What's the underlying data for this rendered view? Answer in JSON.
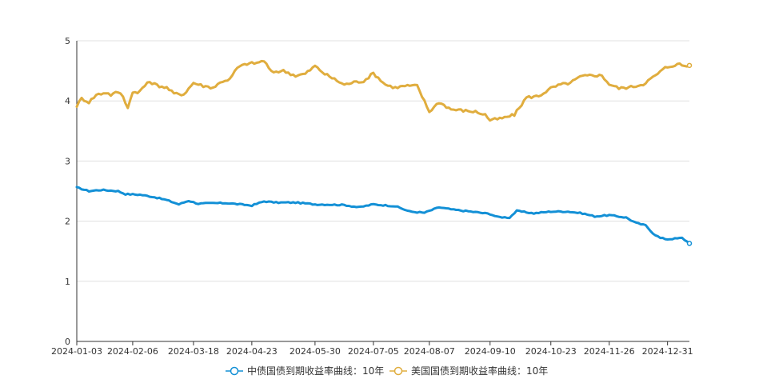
{
  "chart_data": {
    "type": "line",
    "x_ticks": [
      "2024-01-03",
      "2024-02-06",
      "2024-03-18",
      "2024-04-23",
      "2024-05-30",
      "2024-07-05",
      "2024-08-07",
      "2024-09-10",
      "2024-10-23",
      "2024-11-26",
      "2024-12-31"
    ],
    "x_tick_indices": [
      0,
      23,
      48,
      72,
      98,
      122,
      145,
      170,
      195,
      219,
      243
    ],
    "ylim": [
      0,
      5
    ],
    "y_ticks": [
      0,
      1,
      2,
      3,
      4,
      5
    ],
    "grid": true,
    "legend_position": "bottom-center",
    "series": [
      {
        "name": "中债国债到期收益率曲线：10年",
        "color": "#1390d6",
        "keypoints": [
          [
            0,
            2.56
          ],
          [
            5,
            2.5
          ],
          [
            10,
            2.52
          ],
          [
            17,
            2.5
          ],
          [
            20,
            2.45
          ],
          [
            26,
            2.44
          ],
          [
            32,
            2.4
          ],
          [
            37,
            2.35
          ],
          [
            42,
            2.28
          ],
          [
            46,
            2.34
          ],
          [
            50,
            2.29
          ],
          [
            56,
            2.3
          ],
          [
            62,
            2.3
          ],
          [
            72,
            2.26
          ],
          [
            77,
            2.33
          ],
          [
            82,
            2.31
          ],
          [
            90,
            2.31
          ],
          [
            98,
            2.28
          ],
          [
            110,
            2.27
          ],
          [
            116,
            2.23
          ],
          [
            122,
            2.28
          ],
          [
            131,
            2.25
          ],
          [
            137,
            2.16
          ],
          [
            143,
            2.14
          ],
          [
            149,
            2.23
          ],
          [
            155,
            2.19
          ],
          [
            162,
            2.16
          ],
          [
            170,
            2.12
          ],
          [
            173,
            2.07
          ],
          [
            178,
            2.06
          ],
          [
            181,
            2.17
          ],
          [
            188,
            2.13
          ],
          [
            195,
            2.16
          ],
          [
            202,
            2.16
          ],
          [
            208,
            2.13
          ],
          [
            213,
            2.08
          ],
          [
            219,
            2.1
          ],
          [
            226,
            2.06
          ],
          [
            230,
            1.97
          ],
          [
            234,
            1.93
          ],
          [
            237,
            1.8
          ],
          [
            240,
            1.72
          ],
          [
            243,
            1.7
          ],
          [
            246,
            1.71
          ],
          [
            249,
            1.72
          ],
          [
            252,
            1.63
          ]
        ]
      },
      {
        "name": "美国国债到期收益率曲线：10年",
        "color": "#e0ad3e",
        "keypoints": [
          [
            0,
            3.92
          ],
          [
            2,
            4.04
          ],
          [
            5,
            3.98
          ],
          [
            8,
            4.1
          ],
          [
            12,
            4.14
          ],
          [
            14,
            4.1
          ],
          [
            17,
            4.15
          ],
          [
            19,
            4.08
          ],
          [
            21,
            3.88
          ],
          [
            23,
            4.16
          ],
          [
            25,
            4.12
          ],
          [
            27,
            4.22
          ],
          [
            30,
            4.32
          ],
          [
            33,
            4.26
          ],
          [
            37,
            4.22
          ],
          [
            40,
            4.12
          ],
          [
            44,
            4.11
          ],
          [
            48,
            4.3
          ],
          [
            52,
            4.25
          ],
          [
            56,
            4.22
          ],
          [
            60,
            4.33
          ],
          [
            63,
            4.36
          ],
          [
            66,
            4.55
          ],
          [
            70,
            4.62
          ],
          [
            74,
            4.63
          ],
          [
            77,
            4.67
          ],
          [
            80,
            4.48
          ],
          [
            85,
            4.5
          ],
          [
            90,
            4.42
          ],
          [
            94,
            4.45
          ],
          [
            98,
            4.58
          ],
          [
            102,
            4.45
          ],
          [
            106,
            4.36
          ],
          [
            110,
            4.27
          ],
          [
            114,
            4.31
          ],
          [
            118,
            4.33
          ],
          [
            122,
            4.46
          ],
          [
            127,
            4.27
          ],
          [
            131,
            4.22
          ],
          [
            135,
            4.25
          ],
          [
            140,
            4.25
          ],
          [
            145,
            3.82
          ],
          [
            149,
            3.98
          ],
          [
            154,
            3.86
          ],
          [
            159,
            3.84
          ],
          [
            164,
            3.82
          ],
          [
            168,
            3.77
          ],
          [
            170,
            3.68
          ],
          [
            175,
            3.71
          ],
          [
            180,
            3.77
          ],
          [
            185,
            4.06
          ],
          [
            190,
            4.08
          ],
          [
            195,
            4.21
          ],
          [
            199,
            4.27
          ],
          [
            203,
            4.3
          ],
          [
            207,
            4.4
          ],
          [
            212,
            4.43
          ],
          [
            216,
            4.42
          ],
          [
            219,
            4.28
          ],
          [
            223,
            4.21
          ],
          [
            228,
            4.23
          ],
          [
            233,
            4.28
          ],
          [
            238,
            4.42
          ],
          [
            242,
            4.55
          ],
          [
            246,
            4.6
          ],
          [
            248,
            4.61
          ],
          [
            250,
            4.58
          ],
          [
            252,
            4.59
          ]
        ]
      }
    ]
  }
}
